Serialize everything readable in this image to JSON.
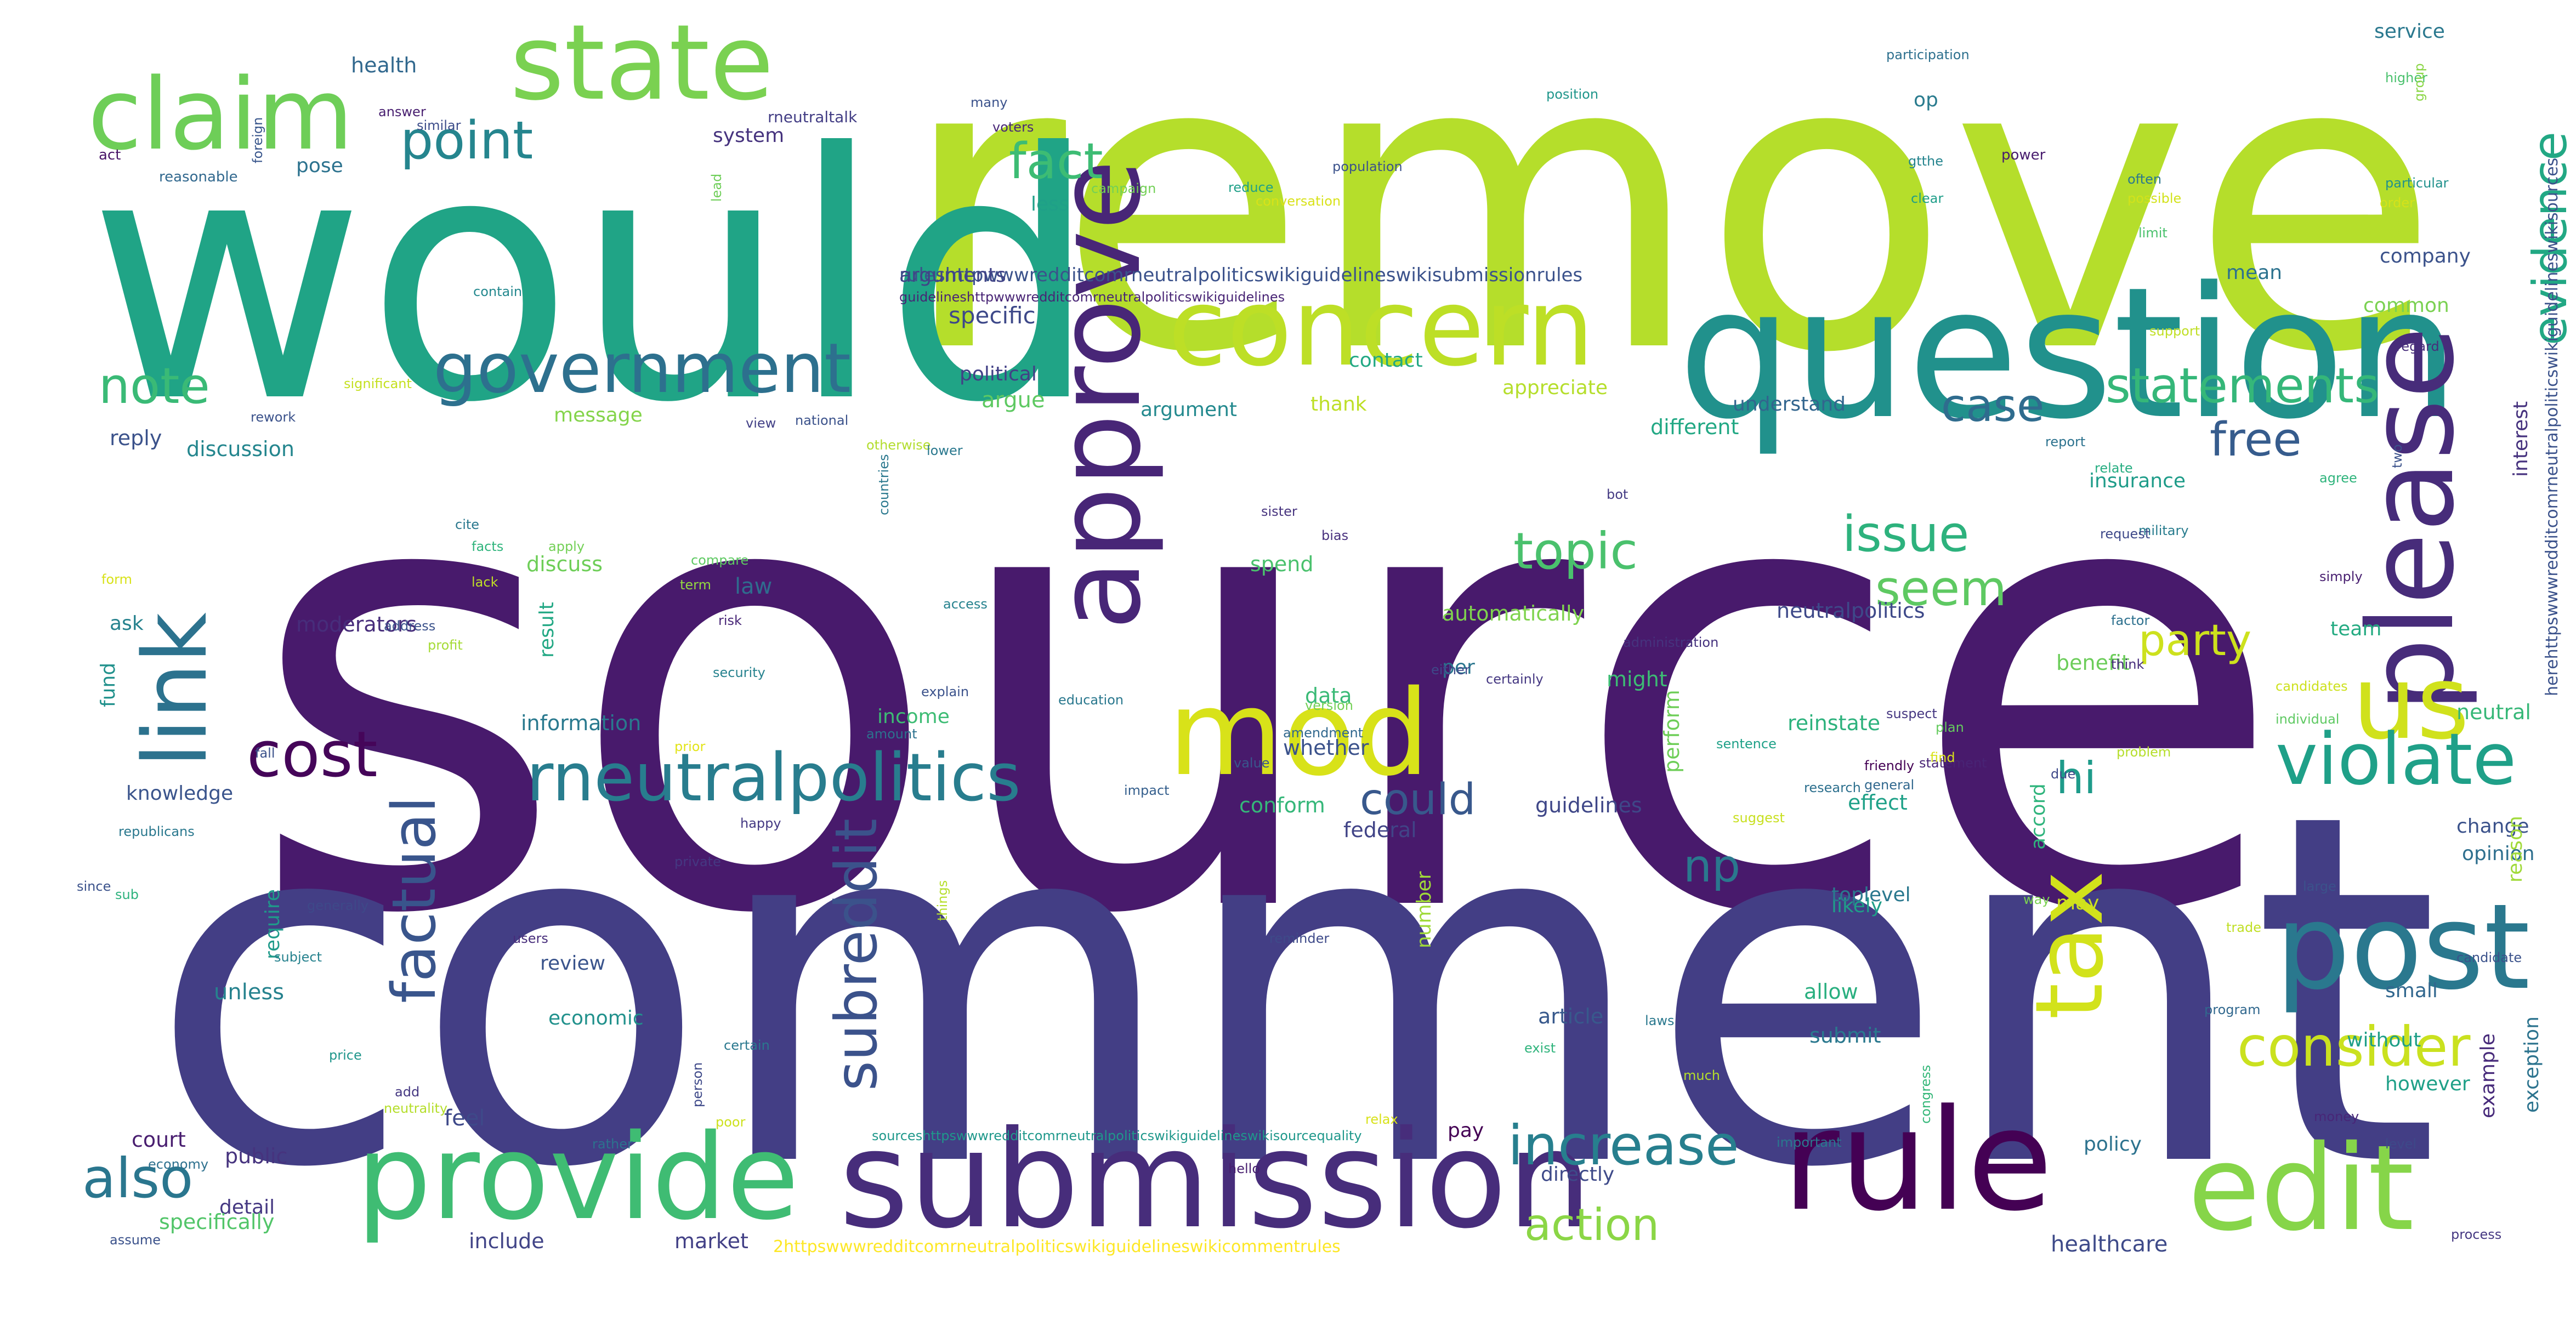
{
  "words": [
    {
      "text": "source",
      "color": "#481a6c"
    },
    {
      "text": "comment",
      "color": "#433e85"
    },
    {
      "text": "remove",
      "color": "#b5de2b"
    },
    {
      "text": "would",
      "color": "#20a486"
    },
    {
      "text": "question",
      "color": "#21918c"
    },
    {
      "text": "submission",
      "color": "#472d7b"
    },
    {
      "text": "rule",
      "color": "#440154"
    },
    {
      "text": "provide",
      "color": "#3fbc73"
    },
    {
      "text": "claim",
      "color": "#6ece58"
    },
    {
      "text": "state",
      "color": "#7ad151"
    },
    {
      "text": "mod",
      "color": "#d8e219"
    },
    {
      "text": "post",
      "color": "#2a788e"
    },
    {
      "text": "edit",
      "color": "#86d549"
    },
    {
      "text": "concern",
      "color": "#bddf26"
    },
    {
      "text": "approve",
      "color": "#482677"
    },
    {
      "text": "please",
      "color": "#472c7a"
    },
    {
      "text": "link",
      "color": "#2c728e"
    },
    {
      "text": "government",
      "color": "#2d708e"
    },
    {
      "text": "rneutralpolitics",
      "color": "#287d8e"
    },
    {
      "text": "us",
      "color": "#d0e11c"
    },
    {
      "text": "tax",
      "color": "#d2e21b"
    },
    {
      "text": "violate",
      "color": "#1fa088"
    },
    {
      "text": "cost",
      "color": "#450559"
    },
    {
      "text": "factual",
      "color": "#39558c"
    },
    {
      "text": "subreddit",
      "color": "#3b528b"
    },
    {
      "text": "increase",
      "color": "#277f8e"
    },
    {
      "text": "consider",
      "color": "#cae11f"
    },
    {
      "text": "statements",
      "color": "#35b779"
    },
    {
      "text": "evidence",
      "color": "#22a884"
    },
    {
      "text": "also",
      "color": "#2a768e"
    },
    {
      "text": "point",
      "color": "#25858e"
    },
    {
      "text": "fact",
      "color": "#3dbc74"
    },
    {
      "text": "note",
      "color": "#3aba76"
    },
    {
      "text": "issue",
      "color": "#2db27d"
    },
    {
      "text": "seem",
      "color": "#5ec962"
    },
    {
      "text": "topic",
      "color": "#4ac16d"
    },
    {
      "text": "case",
      "color": "#2f6c8e"
    },
    {
      "text": "free",
      "color": "#365c8d"
    },
    {
      "text": "party",
      "color": "#cde11d"
    },
    {
      "text": "action",
      "color": "#8bd646"
    },
    {
      "text": "could",
      "color": "#38588c"
    },
    {
      "text": "hi",
      "color": "#1e9b8a"
    },
    {
      "text": "np",
      "color": "#2a788e"
    },
    {
      "text": "rulesh‌ttpwwwredditcomrneutralpoliticswikiguidelineswikisubmissionrules",
      "color": "#3b528b"
    },
    {
      "text": "guidelineshttpwwwredditcomrneutralpoliticswikiguidelines",
      "color": "#482475"
    },
    {
      "text": "herehttpswwwredditcomrneutralpoliticswikiguidelineswikisources",
      "color": "#3b528b"
    },
    {
      "text": "sourceshttpswwwredditcomrneutralpoliticswikiguidelineswikisourcequality",
      "color": "#1f988b"
    },
    {
      "text": "2httpswwwredditcomrneutralpoliticswikiguidelineswikicommentrules",
      "color": "#fde725"
    },
    {
      "text": "rneutraltalk",
      "color": "#433e85"
    },
    {
      "text": "health",
      "color": "#31688e"
    },
    {
      "text": "system",
      "color": "#46337e"
    },
    {
      "text": "pose",
      "color": "#2c728e"
    },
    {
      "text": "op",
      "color": "#297b8e"
    },
    {
      "text": "less",
      "color": "#1fa088"
    },
    {
      "text": "arguments",
      "color": "#414487"
    },
    {
      "text": "specific",
      "color": "#3e4989"
    },
    {
      "text": "political",
      "color": "#424086"
    },
    {
      "text": "argue",
      "color": "#5ec962"
    },
    {
      "text": "argument",
      "color": "#23898e"
    },
    {
      "text": "message",
      "color": "#84d44b"
    },
    {
      "text": "discussion",
      "color": "#24868e"
    },
    {
      "text": "reply",
      "color": "#3b528b"
    },
    {
      "text": "moderators",
      "color": "#472d7b"
    },
    {
      "text": "law",
      "color": "#2f6c8e"
    },
    {
      "text": "discuss",
      "color": "#6ece58"
    },
    {
      "text": "ask",
      "color": "#26828e"
    },
    {
      "text": "information",
      "color": "#29798e"
    },
    {
      "text": "knowledge",
      "color": "#3a548c"
    },
    {
      "text": "fund",
      "color": "#21918c"
    },
    {
      "text": "unless",
      "color": "#26828e"
    },
    {
      "text": "review",
      "color": "#3a548c"
    },
    {
      "text": "economic",
      "color": "#21918c"
    },
    {
      "text": "court",
      "color": "#481d6f"
    },
    {
      "text": "public",
      "color": "#46337e"
    },
    {
      "text": "detail",
      "color": "#453882"
    },
    {
      "text": "specifically",
      "color": "#52c569"
    },
    {
      "text": "feel",
      "color": "#3e4989"
    },
    {
      "text": "include",
      "color": "#414487"
    },
    {
      "text": "market",
      "color": "#424086"
    },
    {
      "text": "require",
      "color": "#1f9a8a"
    },
    {
      "text": "result",
      "color": "#22a884"
    },
    {
      "text": "income",
      "color": "#3dbc74"
    },
    {
      "text": "spend",
      "color": "#4ac16d"
    },
    {
      "text": "automatically",
      "color": "#7fd34e"
    },
    {
      "text": "per",
      "color": "#2a768e"
    },
    {
      "text": "data",
      "color": "#3aba76"
    },
    {
      "text": "whether",
      "color": "#3b528b"
    },
    {
      "text": "conform",
      "color": "#35b779"
    },
    {
      "text": "guidelines",
      "color": "#3f4788"
    },
    {
      "text": "federal",
      "color": "#414487"
    },
    {
      "text": "perform",
      "color": "#6ece58"
    },
    {
      "text": "effect",
      "color": "#1fa188"
    },
    {
      "text": "reinstate",
      "color": "#2db27d"
    },
    {
      "text": "might",
      "color": "#3dbc74"
    },
    {
      "text": "neutralpolitics",
      "color": "#3e4989"
    },
    {
      "text": "likely",
      "color": "#1f9e89"
    },
    {
      "text": "allow",
      "color": "#29af7f"
    },
    {
      "text": "submit",
      "color": "#2a788e"
    },
    {
      "text": "article",
      "color": "#38598c"
    },
    {
      "text": "toplevel",
      "color": "#2a788e"
    },
    {
      "text": "number",
      "color": "#a0da39"
    },
    {
      "text": "pay",
      "color": "#440154"
    },
    {
      "text": "directly",
      "color": "#3e4a89"
    },
    {
      "text": "accord",
      "color": "#2fb47c"
    },
    {
      "text": "may",
      "color": "#cde11d"
    },
    {
      "text": "benefit",
      "color": "#6ccd5a"
    },
    {
      "text": "different",
      "color": "#22a884"
    },
    {
      "text": "understand",
      "color": "#32658e"
    },
    {
      "text": "appreciate",
      "color": "#b5de2b"
    },
    {
      "text": "thank",
      "color": "#bddf26"
    },
    {
      "text": "contact",
      "color": "#22a884"
    },
    {
      "text": "service",
      "color": "#2a788e"
    },
    {
      "text": "company",
      "color": "#3b528b"
    },
    {
      "text": "mean",
      "color": "#2c728e"
    },
    {
      "text": "common",
      "color": "#7ad151"
    },
    {
      "text": "interest",
      "color": "#46327e"
    },
    {
      "text": "insurance",
      "color": "#1e9c89"
    },
    {
      "text": "team",
      "color": "#25ab82"
    },
    {
      "text": "neutral",
      "color": "#37b878"
    },
    {
      "text": "change",
      "color": "#3b528b"
    },
    {
      "text": "opinion",
      "color": "#2e6f8e"
    },
    {
      "text": "reason",
      "color": "#a0da39"
    },
    {
      "text": "small",
      "color": "#31678e"
    },
    {
      "text": "without",
      "color": "#1f9f88"
    },
    {
      "text": "however",
      "color": "#1fa088"
    },
    {
      "text": "policy",
      "color": "#2c728e"
    },
    {
      "text": "example",
      "color": "#472a7a"
    },
    {
      "text": "exception",
      "color": "#2c738e"
    },
    {
      "text": "healthcare",
      "color": "#3e4a89"
    },
    {
      "text": "participation",
      "color": "#2d708e"
    },
    {
      "text": "many",
      "color": "#3b528b"
    },
    {
      "text": "voters",
      "color": "#482677"
    },
    {
      "text": "position",
      "color": "#1f968b"
    },
    {
      "text": "power",
      "color": "#481c6e"
    },
    {
      "text": "higher",
      "color": "#4ac16d"
    },
    {
      "text": "group",
      "color": "#8bd646"
    },
    {
      "text": "particular",
      "color": "#21918c"
    },
    {
      "text": "order",
      "color": "#d5e21a"
    },
    {
      "text": "population",
      "color": "#3b528b"
    },
    {
      "text": "reduce",
      "color": "#1fa088"
    },
    {
      "text": "conversation",
      "color": "#d8e219"
    },
    {
      "text": "campaign",
      "color": "#73d056"
    },
    {
      "text": "gtthe",
      "color": "#25848e"
    },
    {
      "text": "clear",
      "color": "#1f9e89"
    },
    {
      "text": "often",
      "color": "#2a788e"
    },
    {
      "text": "possible",
      "color": "#d2e21b"
    },
    {
      "text": "limit",
      "color": "#4ac16d"
    },
    {
      "text": "support",
      "color": "#c0df25"
    },
    {
      "text": "regard",
      "color": "#472d7b"
    },
    {
      "text": "act",
      "color": "#481467"
    },
    {
      "text": "reasonable",
      "color": "#31688e"
    },
    {
      "text": "foreign",
      "color": "#39568c"
    },
    {
      "text": "answer",
      "color": "#481f70"
    },
    {
      "text": "similar",
      "color": "#3d4d8a"
    },
    {
      "text": "lead",
      "color": "#6ece58"
    },
    {
      "text": "contain",
      "color": "#23888e"
    },
    {
      "text": "rework",
      "color": "#3b528b"
    },
    {
      "text": "significant",
      "color": "#c5e021"
    },
    {
      "text": "view",
      "color": "#424086"
    },
    {
      "text": "national",
      "color": "#3b528b"
    },
    {
      "text": "otherwise",
      "color": "#b2dd2d"
    },
    {
      "text": "lower",
      "color": "#2a788e"
    },
    {
      "text": "report",
      "color": "#2c728e"
    },
    {
      "text": "relate",
      "color": "#26ad81"
    },
    {
      "text": "two",
      "color": "#3b528b"
    },
    {
      "text": "agree",
      "color": "#2fb47c"
    },
    {
      "text": "military",
      "color": "#287c8e"
    },
    {
      "text": "request",
      "color": "#3e4989"
    },
    {
      "text": "bot",
      "color": "#443a83"
    },
    {
      "text": "sister",
      "color": "#46337e"
    },
    {
      "text": "bias",
      "color": "#472f7d"
    },
    {
      "text": "countries",
      "color": "#2a788e"
    },
    {
      "text": "cite",
      "color": "#2a788e"
    },
    {
      "text": "facts",
      "color": "#2fb47c"
    },
    {
      "text": "apply",
      "color": "#73d056"
    },
    {
      "text": "compare",
      "color": "#5ec962"
    },
    {
      "text": "risk",
      "color": "#482677"
    },
    {
      "text": "access",
      "color": "#26828e"
    },
    {
      "text": "lack",
      "color": "#c0df25"
    },
    {
      "text": "term",
      "color": "#93d741"
    },
    {
      "text": "form",
      "color": "#d8e219"
    },
    {
      "text": "address",
      "color": "#3b528b"
    },
    {
      "text": "profit",
      "color": "#a5db36"
    },
    {
      "text": "security",
      "color": "#26828e"
    },
    {
      "text": "explain",
      "color": "#3b528b"
    },
    {
      "text": "education",
      "color": "#2a788e"
    },
    {
      "text": "administration",
      "color": "#46337e"
    },
    {
      "text": "either",
      "color": "#3e4989"
    },
    {
      "text": "version",
      "color": "#73d056"
    },
    {
      "text": "certainly",
      "color": "#453882"
    },
    {
      "text": "factor",
      "color": "#2d708e"
    },
    {
      "text": "simply",
      "color": "#481f70"
    },
    {
      "text": "think",
      "color": "#472d7b"
    },
    {
      "text": "candidates",
      "color": "#cde11d"
    },
    {
      "text": "individual",
      "color": "#5ec962"
    },
    {
      "text": "plan",
      "color": "#65cb5e"
    },
    {
      "text": "suspect",
      "color": "#453781"
    },
    {
      "text": "fall",
      "color": "#3b528b"
    },
    {
      "text": "amount",
      "color": "#2c728e"
    },
    {
      "text": "prior",
      "color": "#e2e418"
    },
    {
      "text": "amendment",
      "color": "#31688e"
    },
    {
      "text": "value",
      "color": "#39568c"
    },
    {
      "text": "sentence",
      "color": "#1fa188"
    },
    {
      "text": "friendly",
      "color": "#440154"
    },
    {
      "text": "due",
      "color": "#3e4989"
    },
    {
      "text": "general",
      "color": "#31688e"
    },
    {
      "text": "statement",
      "color": "#482475"
    },
    {
      "text": "problem",
      "color": "#b5de2b"
    },
    {
      "text": "republicans",
      "color": "#2a788e"
    },
    {
      "text": "impact",
      "color": "#355f8d"
    },
    {
      "text": "happy",
      "color": "#443983"
    },
    {
      "text": "research",
      "color": "#2d708e"
    },
    {
      "text": "suggest",
      "color": "#c8e020"
    },
    {
      "text": "since",
      "color": "#3b528b"
    },
    {
      "text": "sub",
      "color": "#2db27d"
    },
    {
      "text": "private",
      "color": "#453882"
    },
    {
      "text": "way",
      "color": "#7ad151"
    },
    {
      "text": "generally",
      "color": "#3e4989"
    },
    {
      "text": "subject",
      "color": "#26828e"
    },
    {
      "text": "users",
      "color": "#472d7b"
    },
    {
      "text": "things",
      "color": "#b5de2b"
    },
    {
      "text": "reminder",
      "color": "#3e4a89"
    },
    {
      "text": "find",
      "color": "#d8e219"
    },
    {
      "text": "large",
      "color": "#3b528b"
    },
    {
      "text": "trade",
      "color": "#c0df25"
    },
    {
      "text": "candidate",
      "color": "#3b528b"
    },
    {
      "text": "program",
      "color": "#31688e"
    },
    {
      "text": "laws",
      "color": "#2a788e"
    },
    {
      "text": "exist",
      "color": "#2fb47c"
    },
    {
      "text": "price",
      "color": "#1f968b"
    },
    {
      "text": "certain",
      "color": "#2a788e"
    },
    {
      "text": "person",
      "color": "#3e4989"
    },
    {
      "text": "much",
      "color": "#b5de2b"
    },
    {
      "text": "congress",
      "color": "#35b779"
    },
    {
      "text": "add",
      "color": "#453882"
    },
    {
      "text": "neutrality",
      "color": "#b5de2b"
    },
    {
      "text": "relax",
      "color": "#d8e219"
    },
    {
      "text": "poor",
      "color": "#cde11d"
    },
    {
      "text": "money",
      "color": "#482677"
    },
    {
      "text": "level",
      "color": "#3e4989"
    },
    {
      "text": "rather",
      "color": "#2c728e"
    },
    {
      "text": "economy",
      "color": "#2d708e"
    },
    {
      "text": "hello",
      "color": "#481f70"
    },
    {
      "text": "important",
      "color": "#2a788e"
    },
    {
      "text": "process",
      "color": "#453882"
    },
    {
      "text": "assume",
      "color": "#3b528b"
    },
    {
      "text": "legal",
      "color": "#c0df25"
    },
    {
      "text": "study",
      "color": "#31688e"
    }
  ]
}
